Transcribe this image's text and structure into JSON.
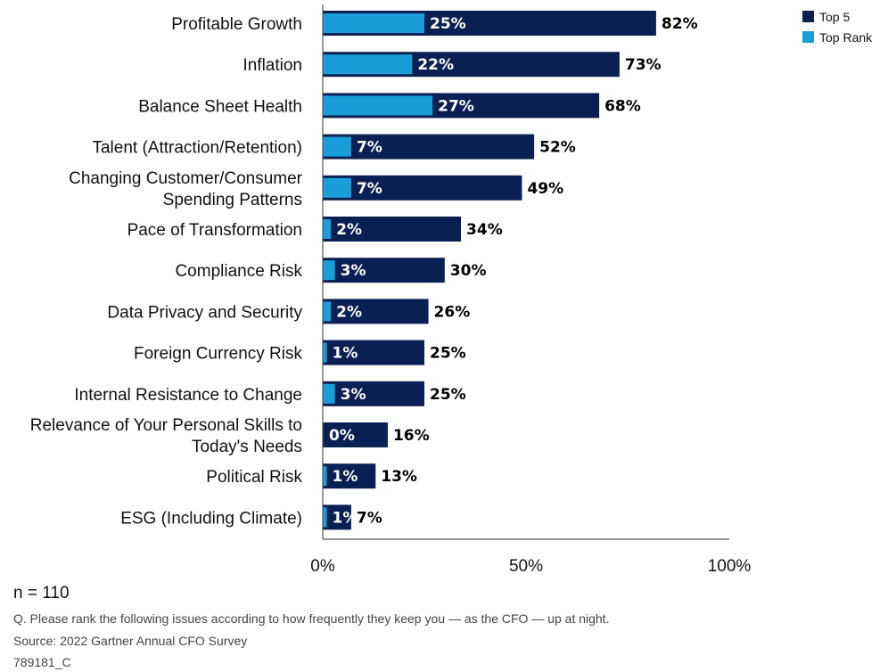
{
  "chart_data": {
    "type": "bar",
    "orientation": "horizontal",
    "categories": [
      "Profitable Growth",
      "Inflation",
      "Balance Sheet Health",
      "Talent (Attraction/Retention)",
      "Changing Customer/Consumer Spending Patterns",
      "Pace of Transformation",
      "Compliance Risk",
      "Data Privacy and Security",
      "Foreign Currency Risk",
      "Internal Resistance to Change",
      "Relevance of Your Personal Skills to Today's Needs",
      "Political Risk",
      "ESG (Including Climate)"
    ],
    "category_lines": [
      [
        "Profitable Growth"
      ],
      [
        "Inflation"
      ],
      [
        "Balance Sheet Health"
      ],
      [
        "Talent (Attraction/Retention)"
      ],
      [
        "Changing Customer/Consumer",
        "Spending Patterns"
      ],
      [
        "Pace of Transformation"
      ],
      [
        "Compliance Risk"
      ],
      [
        "Data Privacy and Security"
      ],
      [
        "Foreign Currency Risk"
      ],
      [
        "Internal Resistance to Change"
      ],
      [
        "Relevance of Your Personal Skills to",
        "Today's Needs"
      ],
      [
        "Political Risk"
      ],
      [
        "ESG (Including Climate)"
      ]
    ],
    "series": [
      {
        "name": "Top 5",
        "color": "#0b2052",
        "values": [
          82,
          73,
          68,
          52,
          49,
          34,
          30,
          26,
          25,
          25,
          16,
          13,
          7
        ]
      },
      {
        "name": "Top Rank",
        "color": "#1a9ed9",
        "values": [
          25,
          22,
          27,
          7,
          7,
          2,
          3,
          2,
          1,
          3,
          0,
          1,
          1
        ]
      }
    ],
    "value_suffix": "%",
    "xlim": [
      0,
      100
    ],
    "xticks": [
      0,
      50,
      100
    ],
    "xtick_labels": [
      "0%",
      "50%",
      "100%"
    ],
    "legend_position": "top-right",
    "grid": false
  },
  "notes": {
    "n": "n = 110",
    "question": "Q. Please rank the following issues according to how frequently they keep you — as the CFO — up at night.",
    "source": "Source: 2022 Gartner Annual CFO Survey",
    "code": "789181_C"
  }
}
